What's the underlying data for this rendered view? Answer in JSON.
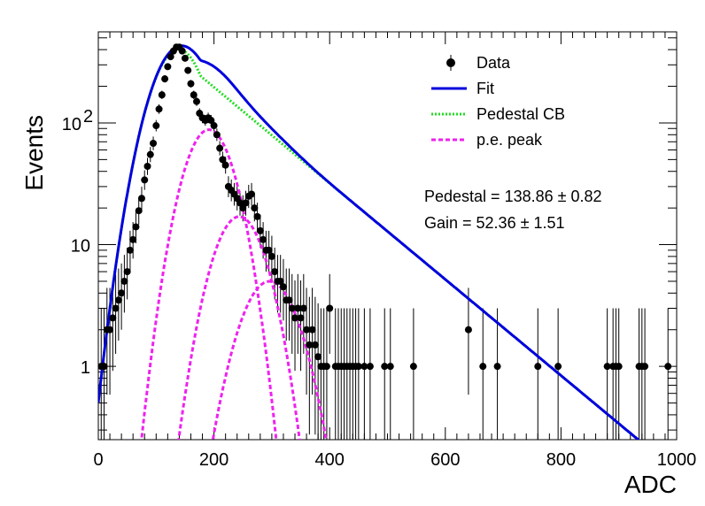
{
  "chart_data": {
    "type": "scatter",
    "title": "",
    "xlabel": "ADC",
    "ylabel": "Events",
    "xlim": [
      0,
      1000
    ],
    "ylim": [
      0.25,
      560
    ],
    "log_y": true,
    "grid": false,
    "legend_position": "top-right",
    "x_ticks": [
      "0",
      "200",
      "400",
      "600",
      "800",
      "1000"
    ],
    "y_ticks": [
      {
        "value": 1,
        "base": "1",
        "exp": ""
      },
      {
        "value": 10,
        "base": "10",
        "exp": ""
      },
      {
        "value": 100,
        "base": "10",
        "exp": "2"
      }
    ],
    "legend": [
      {
        "label": "Data",
        "style": "marker",
        "color": "#000000"
      },
      {
        "label": "Fit",
        "style": "solid",
        "color": "#0000dd"
      },
      {
        "label": "Pedestal CB",
        "style": "dotted",
        "color": "#22dd22"
      },
      {
        "label": "p.e. peak",
        "style": "dashed",
        "color": "#ee22ee"
      }
    ],
    "annotations": [
      "Pedestal = 138.86 ± 0.82",
      "Gain = 52.36 ± 1.51"
    ],
    "fit_params": {
      "pedestal": 138.86,
      "pedestal_err": 0.82,
      "gain": 52.36,
      "gain_err": 1.51
    },
    "fit_components": {
      "pedestal": {
        "amplitude": 400,
        "mean": 138.86,
        "sigma": 38,
        "tail_scale": 110
      },
      "pe_peaks": [
        {
          "amplitude": 88,
          "mean": 191.2,
          "sigma": 34
        },
        {
          "amplitude": 17,
          "mean": 243.6,
          "sigma": 36
        },
        {
          "amplitude": 5,
          "mean": 296.0,
          "sigma": 40
        }
      ]
    },
    "series": [
      {
        "name": "Data",
        "x": [
          5,
          10,
          15,
          20,
          25,
          30,
          35,
          40,
          45,
          50,
          55,
          60,
          65,
          70,
          75,
          80,
          85,
          90,
          95,
          100,
          105,
          110,
          115,
          120,
          125,
          130,
          135,
          140,
          145,
          150,
          155,
          160,
          165,
          170,
          175,
          180,
          185,
          190,
          195,
          200,
          205,
          210,
          215,
          220,
          225,
          230,
          235,
          240,
          245,
          250,
          255,
          260,
          265,
          270,
          275,
          280,
          285,
          290,
          295,
          300,
          305,
          310,
          315,
          320,
          325,
          330,
          335,
          340,
          345,
          350,
          355,
          360,
          365,
          370,
          375,
          380,
          385,
          390,
          395,
          400,
          410,
          415,
          420,
          425,
          430,
          435,
          440,
          445,
          450,
          460,
          470,
          495,
          505,
          545,
          640,
          665,
          690,
          760,
          795,
          880,
          890,
          895,
          900,
          935,
          940,
          945,
          985
        ],
        "y": [
          1,
          1,
          2,
          2,
          2.5,
          3,
          3.5,
          4,
          5,
          6,
          9,
          11,
          14,
          19,
          24,
          34,
          44,
          55,
          68,
          95,
          130,
          170,
          230,
          290,
          350,
          390,
          420,
          420,
          390,
          340,
          270,
          210,
          170,
          150,
          120,
          110,
          105,
          110,
          105,
          95,
          80,
          62,
          50,
          45,
          30,
          28,
          26,
          24,
          22,
          20,
          22,
          25,
          26,
          20,
          17,
          13,
          11,
          9,
          9,
          8,
          6,
          5,
          5,
          4.5,
          3.5,
          3.5,
          3,
          2.5,
          3,
          2.5,
          3,
          2,
          1.5,
          2,
          1.5,
          1.2,
          1,
          1,
          1,
          3,
          1,
          1,
          1,
          1,
          1,
          1,
          1,
          1,
          1,
          1,
          1,
          1,
          1,
          1,
          2,
          1,
          1,
          1,
          1,
          1,
          1,
          1,
          1,
          1,
          1,
          1,
          1
        ]
      }
    ]
  }
}
